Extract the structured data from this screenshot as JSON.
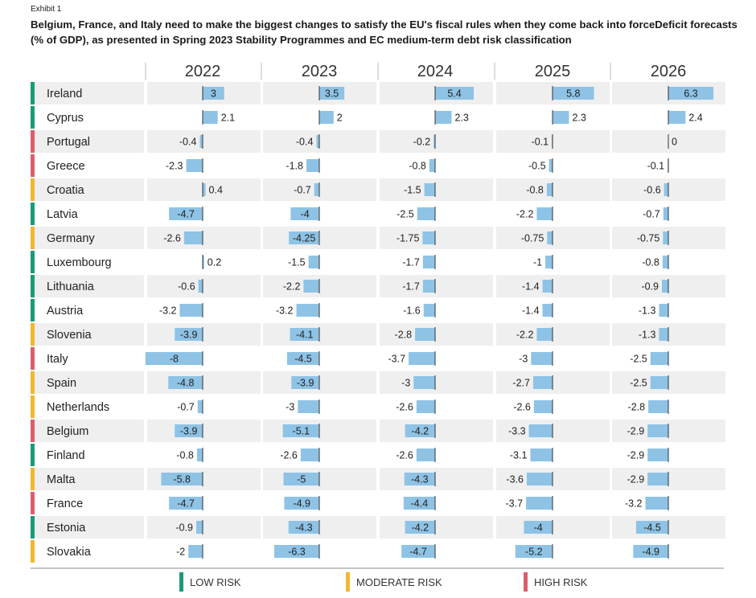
{
  "header": {
    "exhibit": "Exhibit 1",
    "title": "Belgium, France, and Italy need to make the biggest changes to satisfy the EU's fiscal rules when they come back into forceDeficit forecasts (% of GDP), as presented in Spring 2023 Stability Programmes and EC medium-term debt risk classification"
  },
  "legend": [
    {
      "key": "low",
      "label": "LOW RISK",
      "color": "#1a9b78"
    },
    {
      "key": "moderate",
      "label": "MODERATE RISK",
      "color": "#f2b632"
    },
    {
      "key": "high",
      "label": "HIGH RISK",
      "color": "#d9606b"
    }
  ],
  "chart_data": {
    "type": "bar",
    "orientation": "horizontal",
    "title": "Deficit forecasts (% of GDP)",
    "years": [
      "2022",
      "2023",
      "2024",
      "2025",
      "2026"
    ],
    "bar_color": "#8ec3e6",
    "countries": [
      {
        "name": "Ireland",
        "risk": "low",
        "values": [
          3,
          3.5,
          5.4,
          5.8,
          6.3
        ],
        "labels": [
          "3",
          "3.5",
          "5.4",
          "5.8",
          "6.3"
        ]
      },
      {
        "name": "Cyprus",
        "risk": "low",
        "values": [
          2.1,
          2,
          2.3,
          2.3,
          2.4
        ],
        "labels": [
          "2.1",
          "2",
          "2.3",
          "2.3",
          "2.4"
        ]
      },
      {
        "name": "Portugal",
        "risk": "high",
        "values": [
          -0.4,
          -0.4,
          -0.2,
          -0.1,
          0
        ],
        "labels": [
          "-0.4",
          "-0.4",
          "-0.2",
          "-0.1",
          "0"
        ]
      },
      {
        "name": "Greece",
        "risk": "high",
        "values": [
          -2.3,
          -1.8,
          -0.8,
          -0.5,
          -0.1
        ],
        "labels": [
          "-2.3",
          "-1.8",
          "-0.8",
          "-0.5",
          "-0.1"
        ]
      },
      {
        "name": "Croatia",
        "risk": "moderate",
        "values": [
          0.4,
          -0.7,
          -1.5,
          -0.8,
          -0.6
        ],
        "labels": [
          "0.4",
          "-0.7",
          "-1.5",
          "-0.8",
          "-0.6"
        ]
      },
      {
        "name": "Latvia",
        "risk": "low",
        "values": [
          -4.7,
          -4,
          -2.5,
          -2.2,
          -0.7
        ],
        "labels": [
          "-4.7",
          "-4",
          "-2.5",
          "-2.2",
          "-0.7"
        ]
      },
      {
        "name": "Germany",
        "risk": "moderate",
        "values": [
          -2.6,
          -4.25,
          -1.75,
          -0.75,
          -0.75
        ],
        "labels": [
          "-2.6",
          "-4.25",
          "-1.75",
          "-0.75",
          "-0.75"
        ]
      },
      {
        "name": "Luxembourg",
        "risk": "low",
        "values": [
          0.2,
          -1.5,
          -1.7,
          -1,
          -0.8
        ],
        "labels": [
          "0.2",
          "-1.5",
          "-1.7",
          "-1",
          "-0.8"
        ]
      },
      {
        "name": "Lithuania",
        "risk": "low",
        "values": [
          -0.6,
          -2.2,
          -1.7,
          -1.4,
          -0.9
        ],
        "labels": [
          "-0.6",
          "-2.2",
          "-1.7",
          "-1.4",
          "-0.9"
        ]
      },
      {
        "name": "Austria",
        "risk": "low",
        "values": [
          -3.2,
          -3.2,
          -1.6,
          -1.4,
          -1.3
        ],
        "labels": [
          "-3.2",
          "-3.2",
          "-1.6",
          "-1.4",
          "-1.3"
        ]
      },
      {
        "name": "Slovenia",
        "risk": "moderate",
        "values": [
          -3.9,
          -4.1,
          -2.8,
          -2.2,
          -1.3
        ],
        "labels": [
          "-3.9",
          "-4.1",
          "-2.8",
          "-2.2",
          "-1.3"
        ]
      },
      {
        "name": "Italy",
        "risk": "high",
        "values": [
          -8,
          -4.5,
          -3.7,
          -3,
          -2.5
        ],
        "labels": [
          "-8",
          "-4.5",
          "-3.7",
          "-3",
          "-2.5"
        ]
      },
      {
        "name": "Spain",
        "risk": "moderate",
        "values": [
          -4.8,
          -3.9,
          -3,
          -2.7,
          -2.5
        ],
        "labels": [
          "-4.8",
          "-3.9",
          "-3",
          "-2.7",
          "-2.5"
        ]
      },
      {
        "name": "Netherlands",
        "risk": "moderate",
        "values": [
          -0.7,
          -3,
          -2.6,
          -2.6,
          -2.8
        ],
        "labels": [
          "-0.7",
          "-3",
          "-2.6",
          "-2.6",
          "-2.8"
        ]
      },
      {
        "name": "Belgium",
        "risk": "high",
        "values": [
          -3.9,
          -5.1,
          -4.2,
          -3.3,
          -2.9
        ],
        "labels": [
          "-3.9",
          "-5.1",
          "-4.2",
          "-3.3",
          "-2.9"
        ]
      },
      {
        "name": "Finland",
        "risk": "low",
        "values": [
          -0.8,
          -2.6,
          -2.6,
          -3.1,
          -2.9
        ],
        "labels": [
          "-0.8",
          "-2.6",
          "-2.6",
          "-3.1",
          "-2.9"
        ]
      },
      {
        "name": "Malta",
        "risk": "moderate",
        "values": [
          -5.8,
          -5,
          -4.3,
          -3.6,
          -2.9
        ],
        "labels": [
          "-5.8",
          "-5",
          "-4.3",
          "-3.6",
          "-2.9"
        ]
      },
      {
        "name": "France",
        "risk": "high",
        "values": [
          -4.7,
          -4.9,
          -4.4,
          -3.7,
          -3.2
        ],
        "labels": [
          "-4.7",
          "-4.9",
          "-4.4",
          "-3.7",
          "-3.2"
        ]
      },
      {
        "name": "Estonia",
        "risk": "low",
        "values": [
          -0.9,
          -4.3,
          -4.2,
          -4,
          -4.5
        ],
        "labels": [
          "-0.9",
          "-4.3",
          "-4.2",
          "-4",
          "-4.5"
        ]
      },
      {
        "name": "Slovakia",
        "risk": "moderate",
        "values": [
          -2,
          -6.3,
          -4.7,
          -5.2,
          -4.9
        ],
        "labels": [
          "-2",
          "-6.3",
          "-4.7",
          "-5.2",
          "-4.9"
        ]
      }
    ]
  }
}
